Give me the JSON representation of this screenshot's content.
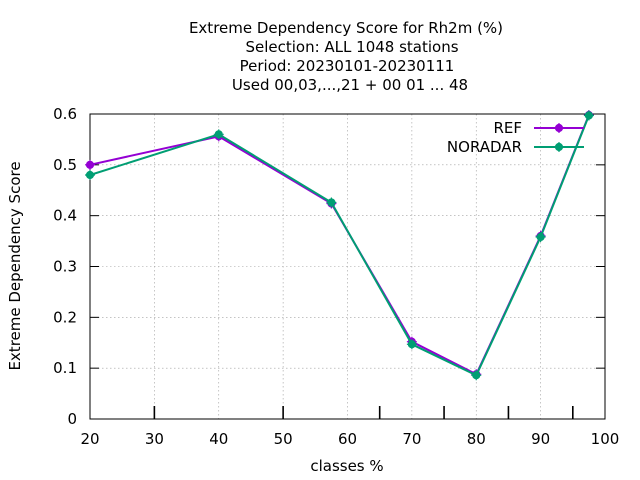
{
  "chart_data": {
    "type": "line",
    "title_lines": [
      "Extreme Dependency Score  for Rh2m (%)",
      "Selection: ALL   1048 stations",
      "Period: 20230101-20230111",
      "Used  00,03,...,21  + 00 01 ... 48"
    ],
    "xlabel": "classes %",
    "ylabel": "Extreme Dependency Score",
    "xlim": [
      20,
      100
    ],
    "ylim": [
      0,
      0.6
    ],
    "x_ticks": [
      "20",
      "30",
      "40",
      "50",
      "60",
      "70",
      "80",
      "90",
      "100"
    ],
    "y_ticks": [
      "0",
      "0.1",
      "0.2",
      "0.3",
      "0.4",
      "0.5",
      "0.6"
    ],
    "bottom_tick_marks": [
      30,
      50,
      65,
      75,
      85,
      95
    ],
    "grid": true,
    "legend_position": "top-right",
    "series": [
      {
        "name": "REF",
        "color": "#9400d3",
        "points": [
          [
            20,
            0.5
          ],
          [
            40,
            0.556
          ],
          [
            57.5,
            0.424
          ],
          [
            70,
            0.152
          ],
          [
            80,
            0.088
          ],
          [
            90,
            0.36
          ],
          [
            97.5,
            0.598
          ]
        ]
      },
      {
        "name": "NORADAR",
        "color": "#009e73",
        "points": [
          [
            20,
            0.48
          ],
          [
            40,
            0.56
          ],
          [
            57.5,
            0.426
          ],
          [
            70,
            0.147
          ],
          [
            80,
            0.086
          ],
          [
            90,
            0.358
          ],
          [
            97.5,
            0.597
          ]
        ]
      }
    ]
  }
}
